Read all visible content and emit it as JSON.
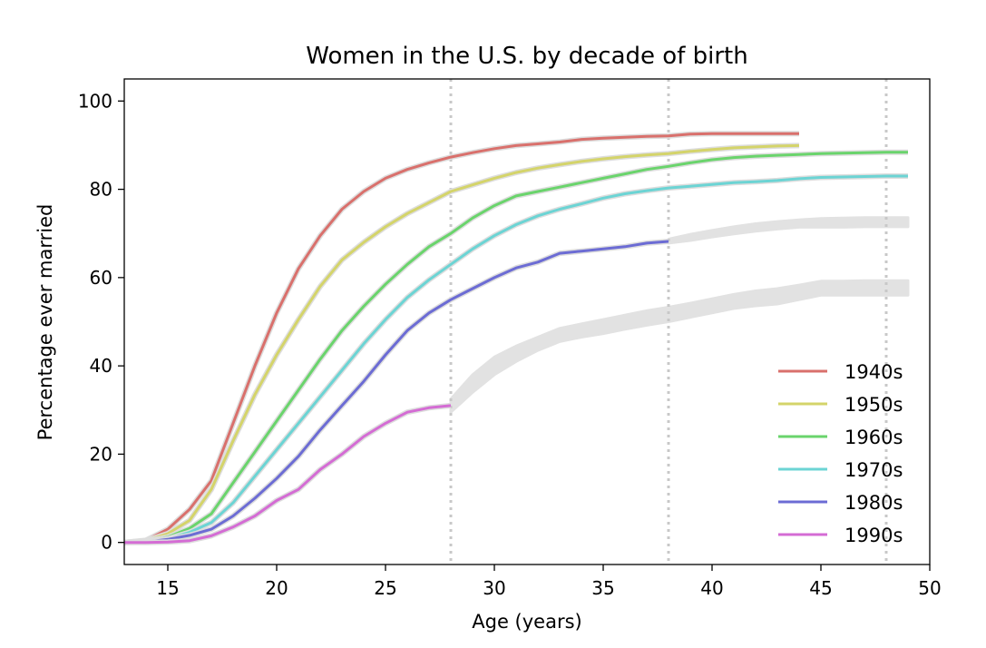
{
  "chart_data": {
    "type": "line",
    "title": "Women in the U.S. by decade of birth",
    "xlabel": "Age (years)",
    "ylabel": "Percentage ever married",
    "xlim": [
      13,
      50
    ],
    "ylim": [
      -5,
      105
    ],
    "xticks": [
      15,
      20,
      25,
      30,
      35,
      40,
      45,
      50
    ],
    "yticks": [
      0,
      20,
      40,
      60,
      80,
      100
    ],
    "grid": false,
    "legend_position": "bottom-right",
    "vertical_reference_lines": [
      28,
      38,
      48
    ],
    "series": [
      {
        "name": "1940s",
        "color": "#d9706c",
        "x": [
          13,
          14,
          15,
          16,
          17,
          18,
          19,
          20,
          21,
          22,
          23,
          24,
          25,
          26,
          27,
          28,
          29,
          30,
          31,
          32,
          33,
          34,
          35,
          36,
          37,
          38,
          39,
          40,
          41,
          42,
          43,
          44
        ],
        "y": [
          0,
          0.5,
          3,
          7.5,
          14,
          27,
          40,
          52,
          62,
          69.5,
          75.5,
          79.5,
          82.5,
          84.5,
          86,
          87.3,
          88.3,
          89.2,
          89.9,
          90.3,
          90.7,
          91.3,
          91.6,
          91.8,
          92,
          92.1,
          92.5,
          92.6,
          92.6,
          92.6,
          92.6,
          92.6
        ]
      },
      {
        "name": "1950s",
        "color": "#d4d46a",
        "x": [
          13,
          14,
          15,
          16,
          17,
          18,
          19,
          20,
          21,
          22,
          23,
          24,
          25,
          26,
          27,
          28,
          29,
          30,
          31,
          32,
          33,
          34,
          35,
          36,
          37,
          38,
          39,
          40,
          41,
          42,
          43,
          44
        ],
        "y": [
          0,
          0.4,
          2,
          5,
          12,
          23,
          33.5,
          42.5,
          50.5,
          58,
          64,
          68,
          71.5,
          74.5,
          77,
          79.5,
          81,
          82.5,
          83.8,
          84.8,
          85.6,
          86.3,
          86.9,
          87.4,
          87.8,
          88.1,
          88.6,
          89,
          89.4,
          89.6,
          89.8,
          89.9
        ]
      },
      {
        "name": "1960s",
        "color": "#6ad46c",
        "x": [
          13,
          14,
          15,
          16,
          17,
          18,
          19,
          20,
          21,
          22,
          23,
          24,
          25,
          26,
          27,
          28,
          29,
          30,
          31,
          32,
          33,
          34,
          35,
          36,
          37,
          38,
          39,
          40,
          41,
          42,
          43,
          44,
          45,
          46,
          47,
          48,
          49
        ],
        "y": [
          0,
          0.3,
          1.2,
          3.2,
          6.5,
          13.5,
          20.5,
          27.5,
          34.5,
          41.5,
          48,
          53.5,
          58.5,
          63,
          67,
          70,
          73.5,
          76.3,
          78.5,
          79.5,
          80.5,
          81.5,
          82.5,
          83.5,
          84.5,
          85.2,
          86,
          86.7,
          87.2,
          87.5,
          87.7,
          87.9,
          88.1,
          88.2,
          88.3,
          88.4,
          88.4
        ]
      },
      {
        "name": "1970s",
        "color": "#6cd4d4",
        "x": [
          13,
          14,
          15,
          16,
          17,
          18,
          19,
          20,
          21,
          22,
          23,
          24,
          25,
          26,
          27,
          28,
          29,
          30,
          31,
          32,
          33,
          34,
          35,
          36,
          37,
          38,
          39,
          40,
          41,
          42,
          43,
          44,
          45,
          46,
          47,
          48,
          49
        ],
        "y": [
          0,
          0.2,
          0.8,
          2.3,
          4.5,
          9,
          15,
          21,
          27,
          33,
          39,
          45,
          50.5,
          55.5,
          59.5,
          63,
          66.5,
          69.5,
          72,
          74,
          75.5,
          76.7,
          78,
          79,
          79.7,
          80.3,
          80.7,
          81.1,
          81.5,
          81.7,
          82,
          82.4,
          82.7,
          82.8,
          82.9,
          83,
          83
        ]
      },
      {
        "name": "1980s",
        "color": "#6c6cd4",
        "x": [
          13,
          14,
          15,
          16,
          17,
          18,
          19,
          20,
          21,
          22,
          23,
          24,
          25,
          26,
          27,
          28,
          29,
          30,
          31,
          32,
          33,
          34,
          35,
          36,
          37,
          38
        ],
        "y": [
          0,
          0.1,
          0.7,
          1.6,
          3,
          6,
          10,
          14.5,
          19.5,
          25.5,
          31,
          36.5,
          42.5,
          48,
          52,
          55,
          57.5,
          60,
          62.2,
          63.5,
          65.5,
          66,
          66.5,
          67,
          67.8,
          68.2
        ]
      },
      {
        "name": "1990s",
        "color": "#d46cd4",
        "x": [
          13,
          14,
          15,
          16,
          17,
          18,
          19,
          20,
          21,
          22,
          23,
          24,
          25,
          26,
          27,
          28
        ],
        "y": [
          0,
          0,
          0.1,
          0.4,
          1.5,
          3.5,
          6,
          9.5,
          12,
          16.5,
          20,
          24,
          27,
          29.5,
          30.5,
          31
        ]
      }
    ],
    "predictions": [
      {
        "name": "1980s projected",
        "x": [
          38,
          39,
          40,
          41,
          42,
          43,
          44,
          45,
          46,
          47,
          48,
          49
        ],
        "lo": [
          67.8,
          68.4,
          69.2,
          69.9,
          70.5,
          71,
          71.4,
          71.4,
          71.4,
          71.5,
          71.5,
          71.5
        ],
        "hi": [
          68.7,
          69.8,
          70.7,
          71.5,
          72.2,
          72.7,
          73.1,
          73.4,
          73.5,
          73.6,
          73.6,
          73.6
        ]
      },
      {
        "name": "1990s projected",
        "x": [
          28,
          29,
          30,
          31,
          32,
          33,
          34,
          35,
          36,
          37,
          38,
          39,
          40,
          41,
          42,
          43,
          44,
          45,
          46,
          47,
          48,
          49
        ],
        "lo": [
          29.5,
          34,
          38,
          41,
          43.5,
          45.5,
          46.5,
          47.3,
          48.3,
          49.2,
          50,
          51,
          52,
          53,
          53.6,
          54,
          55,
          56,
          56,
          56,
          56,
          56
        ],
        "hi": [
          32.5,
          38,
          42,
          44.5,
          46.5,
          48.5,
          49.5,
          50.5,
          51.5,
          52.5,
          53.3,
          54.2,
          55.2,
          56.2,
          57,
          57.5,
          58.3,
          59.2,
          59.2,
          59.3,
          59.3,
          59.3
        ]
      }
    ]
  }
}
